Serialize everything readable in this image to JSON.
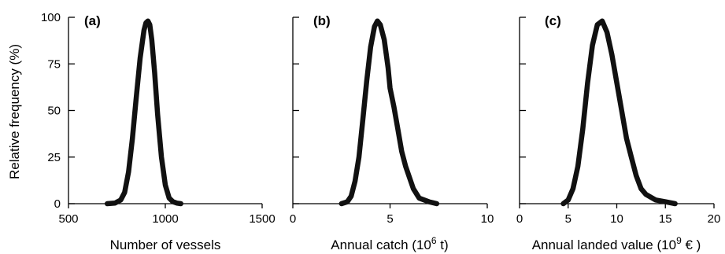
{
  "ylabel": "Relative frequency (%)",
  "chart_data": [
    {
      "type": "line",
      "panel_label": "(a)",
      "xlabel": "Number of vessels",
      "xlim": [
        500,
        1500
      ],
      "ylim": [
        0,
        100
      ],
      "xticks": [
        500,
        1000,
        1500
      ],
      "xtick_labels": [
        "500",
        "1000",
        "1500"
      ],
      "yticks": [
        0,
        25,
        50,
        75,
        100
      ],
      "ytick_labels": [
        "0",
        "25",
        "50",
        "75",
        "100"
      ],
      "x": [
        700,
        740,
        770,
        790,
        810,
        830,
        850,
        870,
        890,
        900,
        910,
        920,
        930,
        945,
        960,
        980,
        1000,
        1020,
        1040,
        1060,
        1080
      ],
      "y": [
        0,
        0.3,
        2,
        6,
        17,
        35,
        57,
        78,
        93,
        97,
        98,
        96,
        88,
        70,
        48,
        25,
        10,
        3,
        1,
        0.3,
        0
      ]
    },
    {
      "type": "line",
      "panel_label": "(b)",
      "xlabel": "Annual catch (10^6 t)",
      "xlabel_parts": [
        "Annual catch (10",
        "6",
        " t)"
      ],
      "xlim": [
        0,
        10
      ],
      "ylim": [
        0,
        100
      ],
      "xticks": [
        0,
        5,
        10
      ],
      "xtick_labels": [
        "0",
        "5",
        "10"
      ],
      "yticks": [
        0,
        25,
        50,
        75,
        100
      ],
      "ytick_labels": [
        "0",
        "25",
        "50",
        "75",
        "100"
      ],
      "x": [
        2.5,
        2.8,
        3.0,
        3.2,
        3.4,
        3.6,
        3.8,
        4.0,
        4.2,
        4.35,
        4.5,
        4.7,
        4.9,
        5.0,
        5.2,
        5.4,
        5.6,
        5.8,
        6.0,
        6.2,
        6.5,
        7.0,
        7.4
      ],
      "y": [
        0,
        1,
        4,
        12,
        25,
        45,
        66,
        84,
        95,
        98,
        96,
        88,
        73,
        62,
        52,
        40,
        28,
        20,
        14,
        8,
        3,
        1,
        0
      ]
    },
    {
      "type": "line",
      "panel_label": "(c)",
      "xlabel": "Annual landed value (10^9 € )",
      "xlabel_parts": [
        "Annual landed value (10",
        "9",
        " € )"
      ],
      "xlim": [
        0,
        20
      ],
      "ylim": [
        0,
        100
      ],
      "xticks": [
        0,
        5,
        10,
        15,
        20
      ],
      "xtick_labels": [
        "0",
        "5",
        "10",
        "15",
        "20"
      ],
      "yticks": [
        0,
        25,
        50,
        75,
        100
      ],
      "ytick_labels": [
        "0",
        "25",
        "50",
        "75",
        "100"
      ],
      "x": [
        4.5,
        5.0,
        5.5,
        6.0,
        6.5,
        7.0,
        7.5,
        8.0,
        8.5,
        9.0,
        9.5,
        10.0,
        10.5,
        11.0,
        11.5,
        12.0,
        12.5,
        13.0,
        14.0,
        15.0,
        16.0
      ],
      "y": [
        0,
        2,
        8,
        20,
        40,
        65,
        85,
        96,
        98,
        92,
        80,
        65,
        50,
        35,
        25,
        15,
        8,
        5,
        2,
        1,
        0
      ]
    }
  ]
}
